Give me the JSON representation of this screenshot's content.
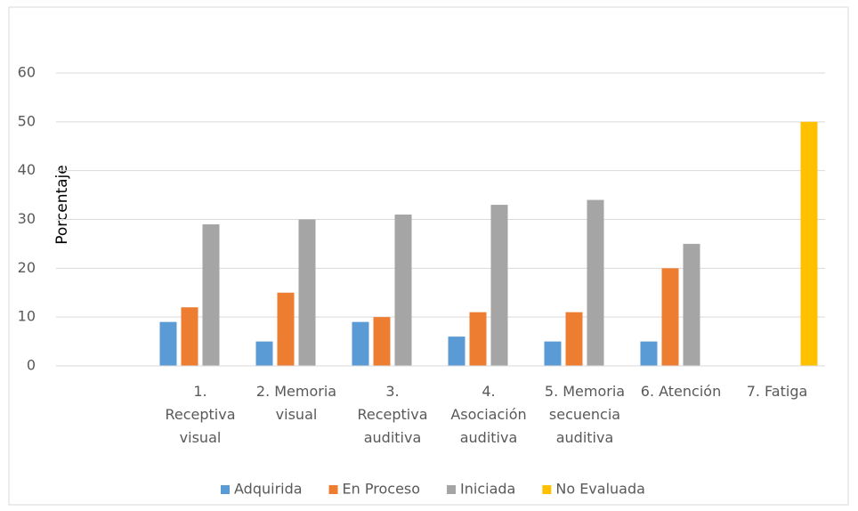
{
  "chart_data": {
    "type": "bar",
    "y_label": "Porcentaje",
    "categories": [
      null,
      "1. Receptiva visual",
      "2. Memoria visual",
      "3. Receptiva auditiva",
      "4. Asociación auditiva",
      "5. Memoria secuencia auditiva",
      "6. Atención",
      "7. Fatiga"
    ],
    "series": [
      {
        "name": "Adquirida",
        "color": "#5b9bd5",
        "values": [
          null,
          9,
          5,
          9,
          6,
          5,
          5,
          null
        ]
      },
      {
        "name": "En Proceso",
        "color": "#ed7d31",
        "values": [
          null,
          12,
          15,
          10,
          11,
          11,
          20,
          null
        ]
      },
      {
        "name": "Iniciada",
        "color": "#a5a5a5",
        "values": [
          null,
          29,
          30,
          31,
          33,
          34,
          25,
          null
        ]
      },
      {
        "name": "No Evaluada",
        "color": "#ffc000",
        "values": [
          null,
          null,
          null,
          null,
          null,
          null,
          null,
          50
        ]
      }
    ],
    "ylim": [
      0,
      60
    ],
    "yticks": [
      0,
      10,
      20,
      30,
      40,
      50,
      60
    ],
    "grid": true,
    "legend": "bottom"
  }
}
